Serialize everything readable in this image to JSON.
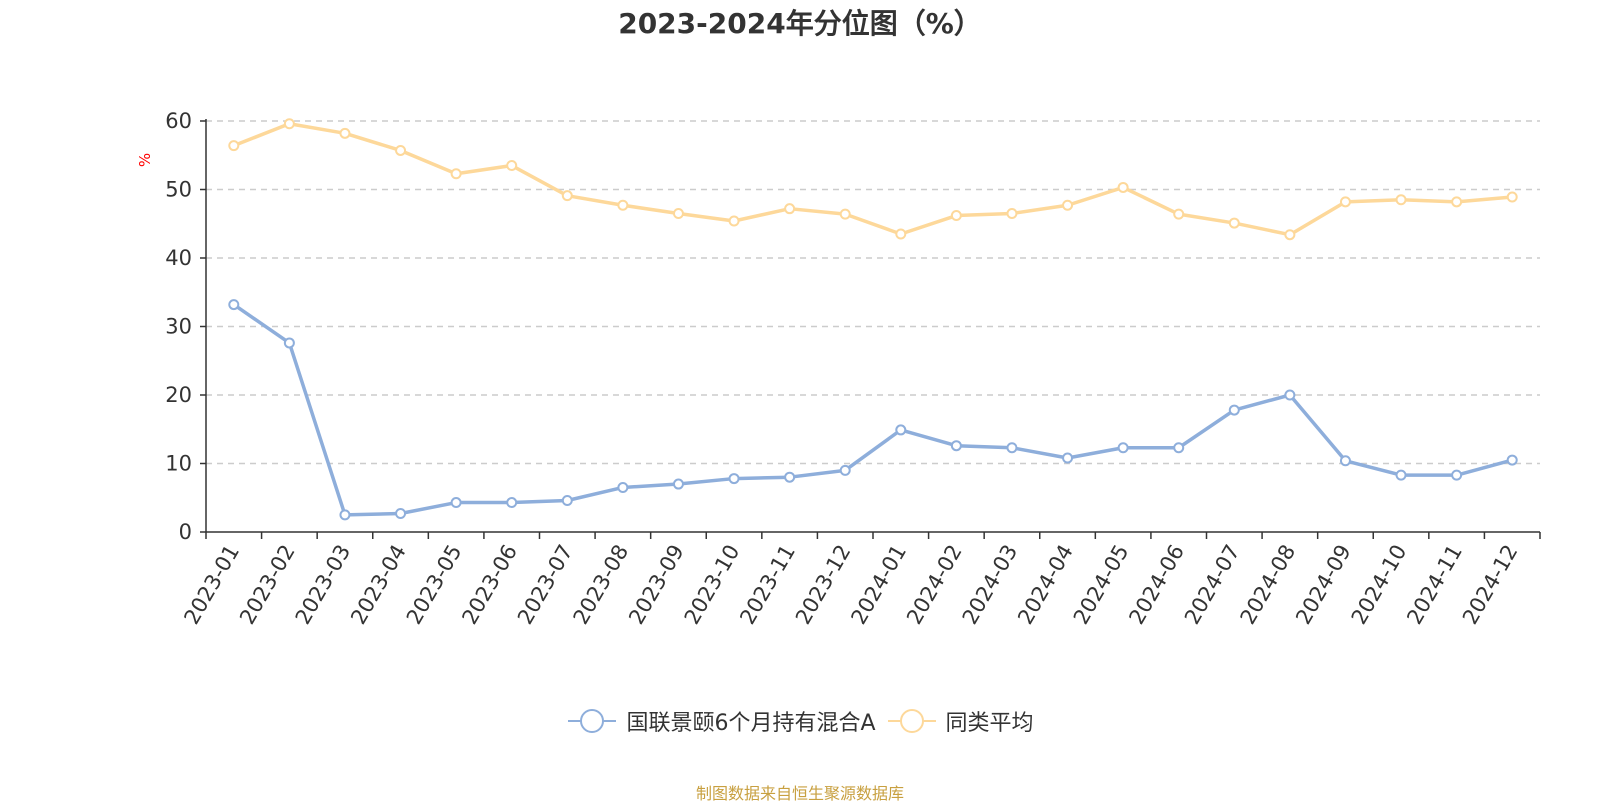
{
  "chart_data": {
    "type": "line",
    "title": "2023-2024年分位图（%）",
    "ylabel": "%",
    "xlabel": "",
    "ylim": [
      0,
      60
    ],
    "yticks": [
      0,
      10,
      20,
      30,
      40,
      50,
      60
    ],
    "grid": true,
    "legend_position": "bottom-center",
    "categories": [
      "2023-01",
      "2023-02",
      "2023-03",
      "2023-04",
      "2023-05",
      "2023-06",
      "2023-07",
      "2023-08",
      "2023-09",
      "2023-10",
      "2023-11",
      "2023-12",
      "2024-01",
      "2024-02",
      "2024-03",
      "2024-04",
      "2024-05",
      "2024-06",
      "2024-07",
      "2024-08",
      "2024-09",
      "2024-10",
      "2024-11",
      "2024-12"
    ],
    "series": [
      {
        "name": "国联景颐6个月持有混合A",
        "color": "#8eaedb",
        "values": [
          33.2,
          27.6,
          2.5,
          2.7,
          4.3,
          4.3,
          4.6,
          6.5,
          7.0,
          7.8,
          8.0,
          9.0,
          14.9,
          12.6,
          12.3,
          10.8,
          12.3,
          12.3,
          17.8,
          20.0,
          10.4,
          8.3,
          8.3,
          10.5
        ]
      },
      {
        "name": "同类平均",
        "color": "#fdd89a",
        "values": [
          56.4,
          59.6,
          58.2,
          55.7,
          52.3,
          53.5,
          49.1,
          47.7,
          46.5,
          45.4,
          47.2,
          46.4,
          43.5,
          46.2,
          46.5,
          47.7,
          50.3,
          46.4,
          45.1,
          43.4,
          48.2,
          48.5,
          48.2,
          48.9
        ]
      }
    ]
  },
  "source_text": "制图数据来自恒生聚源数据库"
}
